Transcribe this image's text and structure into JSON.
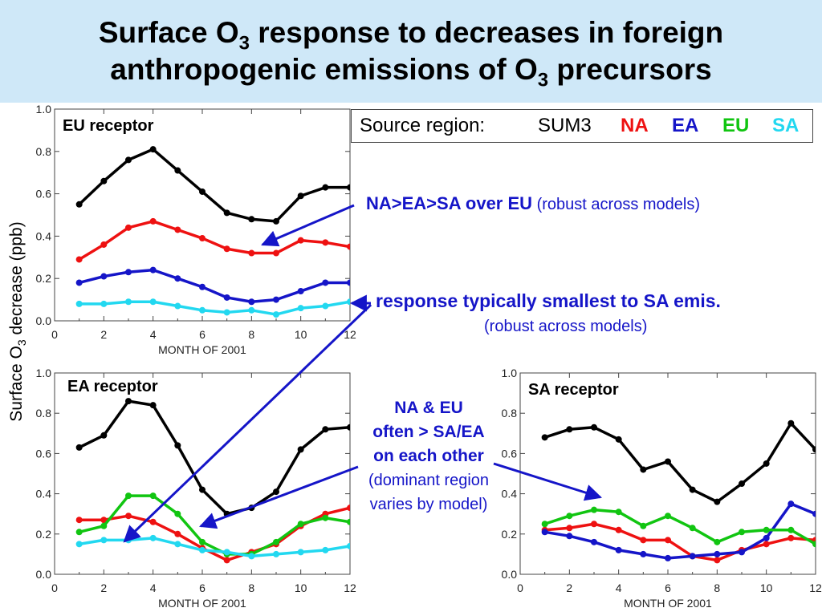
{
  "title": {
    "line1_pre": "Surface O",
    "line1_sub": "3",
    "line1_post": " response to decreases in foreign",
    "line2_pre": "anthropogenic emissions of O",
    "line2_sub": "3",
    "line2_post": " precursors"
  },
  "y_axis_label": {
    "pre": "Surface O",
    "sub": "3",
    "post": " decrease (ppb)"
  },
  "legend": {
    "heading": "Source region:",
    "entries": [
      {
        "label": "SUM3",
        "color": "#000000"
      },
      {
        "label": "NA",
        "color": "#ee1111"
      },
      {
        "label": "EA",
        "color": "#1515c8"
      },
      {
        "label": "EU",
        "color": "#11c511"
      },
      {
        "label": "SA",
        "color": "#22d8f0"
      }
    ]
  },
  "annotations": {
    "note1_bold": "NA>EA>SA over EU",
    "note1_plain": " (robust across models)",
    "note2_bold": "response typically smallest to SA emis.",
    "note2_plain": "(robust across models)",
    "note3_line1": "NA & EU",
    "note3_line2": "often > SA/EA",
    "note3_line3": "on each other",
    "note3_line4": "(dominant region",
    "note3_line5": "varies by model)"
  },
  "chart_data": [
    {
      "type": "line",
      "panel_label": "EU receptor",
      "xlabel": "MONTH OF 2001",
      "xlim": [
        0,
        12
      ],
      "ylim": [
        0.0,
        1.0
      ],
      "x_ticks": [
        "0",
        "2",
        "4",
        "6",
        "8",
        "10",
        "12"
      ],
      "y_ticks": [
        "0.0",
        "0.2",
        "0.4",
        "0.6",
        "0.8",
        "1.0"
      ],
      "x": [
        1,
        2,
        3,
        4,
        5,
        6,
        7,
        8,
        9,
        10,
        11,
        12
      ],
      "series": [
        {
          "name": "SUM3",
          "color": "#000000",
          "values": [
            0.55,
            0.66,
            0.76,
            0.81,
            0.71,
            0.61,
            0.51,
            0.48,
            0.47,
            0.59,
            0.63,
            0.63
          ]
        },
        {
          "name": "NA",
          "color": "#ee1111",
          "values": [
            0.29,
            0.36,
            0.44,
            0.47,
            0.43,
            0.39,
            0.34,
            0.32,
            0.32,
            0.38,
            0.37,
            0.35
          ]
        },
        {
          "name": "EA",
          "color": "#1515c8",
          "values": [
            0.18,
            0.21,
            0.23,
            0.24,
            0.2,
            0.16,
            0.11,
            0.09,
            0.1,
            0.14,
            0.18,
            0.18
          ]
        },
        {
          "name": "SA",
          "color": "#22d8f0",
          "values": [
            0.08,
            0.08,
            0.09,
            0.09,
            0.07,
            0.05,
            0.04,
            0.05,
            0.03,
            0.06,
            0.07,
            0.09
          ]
        }
      ]
    },
    {
      "type": "line",
      "panel_label": "EA receptor",
      "xlabel": "MONTH OF 2001",
      "xlim": [
        0,
        12
      ],
      "ylim": [
        0.0,
        1.0
      ],
      "x_ticks": [
        "0",
        "2",
        "4",
        "6",
        "8",
        "10",
        "12"
      ],
      "y_ticks": [
        "0.0",
        "0.2",
        "0.4",
        "0.6",
        "0.8",
        "1.0"
      ],
      "x": [
        1,
        2,
        3,
        4,
        5,
        6,
        7,
        8,
        9,
        10,
        11,
        12
      ],
      "series": [
        {
          "name": "SUM3",
          "color": "#000000",
          "values": [
            0.63,
            0.69,
            0.86,
            0.84,
            0.64,
            0.42,
            0.3,
            0.33,
            0.41,
            0.62,
            0.72,
            0.73
          ]
        },
        {
          "name": "NA",
          "color": "#ee1111",
          "values": [
            0.27,
            0.27,
            0.29,
            0.26,
            0.2,
            0.13,
            0.07,
            0.11,
            0.15,
            0.24,
            0.3,
            0.33
          ]
        },
        {
          "name": "EU",
          "color": "#11c511",
          "values": [
            0.21,
            0.24,
            0.39,
            0.39,
            0.3,
            0.16,
            0.1,
            0.1,
            0.16,
            0.25,
            0.28,
            0.26
          ]
        },
        {
          "name": "SA",
          "color": "#22d8f0",
          "values": [
            0.15,
            0.17,
            0.17,
            0.18,
            0.15,
            0.12,
            0.11,
            0.09,
            0.1,
            0.11,
            0.12,
            0.14
          ]
        }
      ]
    },
    {
      "type": "line",
      "panel_label": "SA receptor",
      "xlabel": "MONTH OF 2001",
      "xlim": [
        0,
        12
      ],
      "ylim": [
        0.0,
        1.0
      ],
      "x_ticks": [
        "0",
        "2",
        "4",
        "6",
        "8",
        "10",
        "12"
      ],
      "y_ticks": [
        "0.0",
        "0.2",
        "0.4",
        "0.6",
        "0.8",
        "1.0"
      ],
      "x": [
        1,
        2,
        3,
        4,
        5,
        6,
        7,
        8,
        9,
        10,
        11,
        12
      ],
      "series": [
        {
          "name": "SUM3",
          "color": "#000000",
          "values": [
            0.68,
            0.72,
            0.73,
            0.67,
            0.52,
            0.56,
            0.42,
            0.36,
            0.45,
            0.55,
            0.75,
            0.62
          ]
        },
        {
          "name": "NA",
          "color": "#ee1111",
          "values": [
            0.22,
            0.23,
            0.25,
            0.22,
            0.17,
            0.17,
            0.09,
            0.07,
            0.12,
            0.15,
            0.18,
            0.17
          ]
        },
        {
          "name": "EA",
          "color": "#1515c8",
          "values": [
            0.21,
            0.19,
            0.16,
            0.12,
            0.1,
            0.08,
            0.09,
            0.1,
            0.11,
            0.18,
            0.35,
            0.3
          ]
        },
        {
          "name": "EU",
          "color": "#11c511",
          "values": [
            0.25,
            0.29,
            0.32,
            0.31,
            0.24,
            0.29,
            0.23,
            0.16,
            0.21,
            0.22,
            0.22,
            0.15
          ]
        }
      ]
    }
  ]
}
